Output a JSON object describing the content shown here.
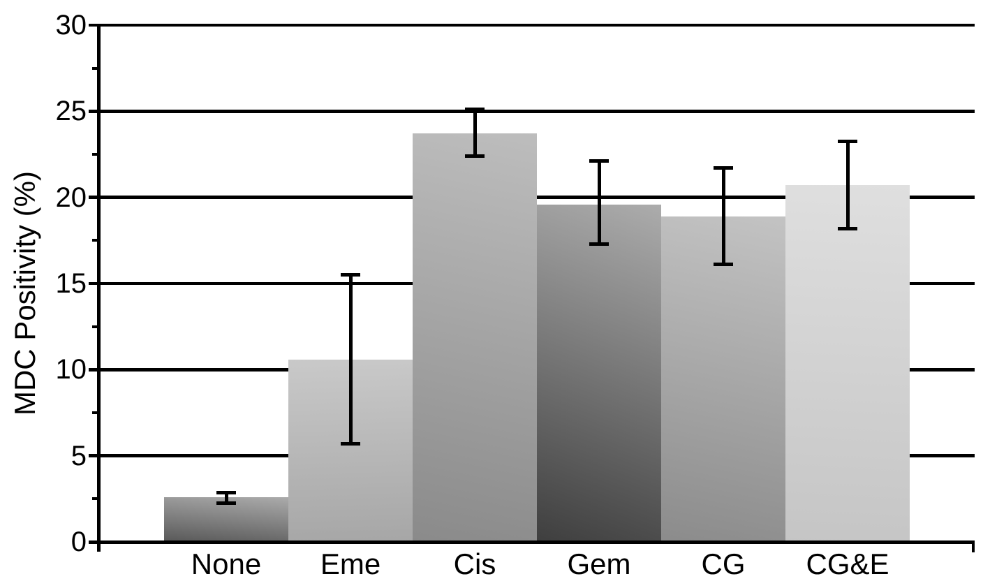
{
  "chart_data": {
    "type": "bar",
    "title": "",
    "xlabel": "",
    "ylabel": "MDC Positivity (%)",
    "categories": [
      "None",
      "Eme",
      "Cis",
      "Gem",
      "CG",
      "CG&E"
    ],
    "values": [
      2.6,
      10.6,
      23.7,
      19.6,
      18.9,
      20.7
    ],
    "error_low": [
      2.25,
      5.7,
      22.4,
      17.3,
      16.1,
      18.2
    ],
    "error_high": [
      2.85,
      15.5,
      25.1,
      22.1,
      21.7,
      23.25
    ],
    "ylim": [
      0,
      30
    ],
    "ytick_interval": 5,
    "ytick_labels": [
      "0",
      "5",
      "10",
      "15",
      "20",
      "25",
      "30"
    ],
    "minor_tick_interval": 2.5,
    "grid": true,
    "legend": "none",
    "bar_styles": [
      {
        "category": "None",
        "gradient_top": "#ABABAB",
        "gradient_bottom": "#565656",
        "angle": 185
      },
      {
        "category": "Eme",
        "gradient_top": "#C9C9C9",
        "gradient_bottom": "#A6A6A6",
        "angle": 178
      },
      {
        "category": "Cis",
        "gradient_top": "#BDBDBD",
        "gradient_bottom": "#8A8A8A",
        "angle": 192
      },
      {
        "category": "Gem",
        "gradient_top": "#ACACAC",
        "gradient_bottom": "#3E3E3E",
        "angle": 200
      },
      {
        "category": "CG",
        "gradient_top": "#C3C3C3",
        "gradient_bottom": "#8B8B8B",
        "angle": 192
      },
      {
        "category": "CG&E",
        "gradient_top": "#DFDFDF",
        "gradient_bottom": "#C5C5C5",
        "angle": 183
      }
    ],
    "axis_color": "#000000",
    "background_color": "#FFFFFF"
  }
}
